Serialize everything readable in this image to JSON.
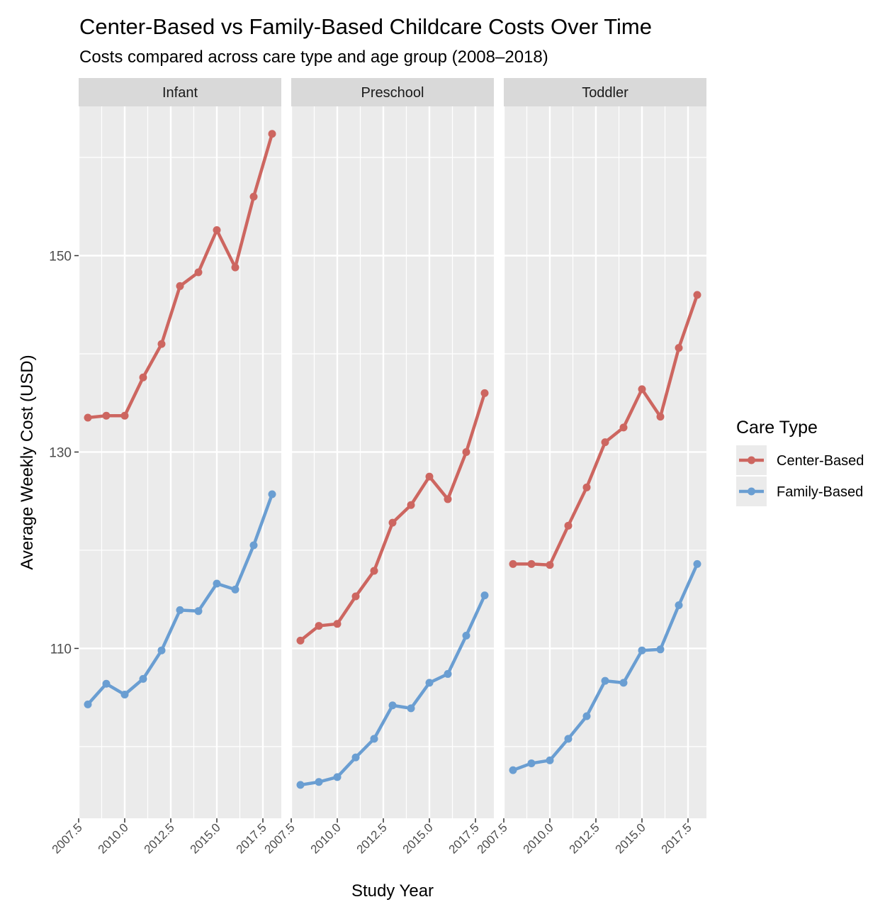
{
  "chart_data": {
    "type": "line",
    "title": "Center-Based vs Family-Based Childcare Costs Over Time",
    "subtitle": "Costs compared across care type and age group (2008–2018)",
    "xlabel": "Study Year",
    "ylabel": "Average Weekly Cost (USD)",
    "xlim": [
      2007.5,
      2018.5
    ],
    "ylim": [
      92.7,
      165.2
    ],
    "x_ticks": [
      2007.5,
      2010.0,
      2012.5,
      2015.0,
      2017.5
    ],
    "x_tick_labels": [
      "2007.5",
      "2010.0",
      "2012.5",
      "2015.0",
      "2017.5"
    ],
    "y_ticks": [
      110,
      130,
      150
    ],
    "y_tick_labels": [
      "110",
      "130",
      "150"
    ],
    "grid": true,
    "legend": {
      "title": "Care Type",
      "position": "right",
      "entries": [
        "Center-Based",
        "Family-Based"
      ]
    },
    "colors": {
      "Center-Based": "#CD6660",
      "Family-Based": "#6A9ED2",
      "panel_background": "#EBEBEB",
      "strip_background": "#D9D9D9",
      "grid": "#FFFFFF"
    },
    "x": [
      2008,
      2009,
      2010,
      2011,
      2012,
      2013,
      2014,
      2015,
      2016,
      2017,
      2018
    ],
    "facets": [
      {
        "label": "Infant",
        "series": [
          {
            "name": "Center-Based",
            "values": [
              133.5,
              133.7,
              133.7,
              137.6,
              141.0,
              146.9,
              148.3,
              152.6,
              148.8,
              156.0,
              162.4
            ]
          },
          {
            "name": "Family-Based",
            "values": [
              104.3,
              106.4,
              105.3,
              106.9,
              109.8,
              113.9,
              113.8,
              116.6,
              116.0,
              120.5,
              125.7
            ]
          }
        ]
      },
      {
        "label": "Preschool",
        "series": [
          {
            "name": "Center-Based",
            "values": [
              110.8,
              112.3,
              112.5,
              115.3,
              117.9,
              122.8,
              124.6,
              127.5,
              125.2,
              130.0,
              136.0
            ]
          },
          {
            "name": "Family-Based",
            "values": [
              96.1,
              96.4,
              96.9,
              98.9,
              100.8,
              104.2,
              103.9,
              106.5,
              107.4,
              111.3,
              115.4
            ]
          }
        ]
      },
      {
        "label": "Toddler",
        "series": [
          {
            "name": "Center-Based",
            "values": [
              118.6,
              118.6,
              118.5,
              122.5,
              126.4,
              131.0,
              132.5,
              136.4,
              133.6,
              140.6,
              146.0
            ]
          },
          {
            "name": "Family-Based",
            "values": [
              97.6,
              98.3,
              98.6,
              100.8,
              103.1,
              106.7,
              106.5,
              109.8,
              109.9,
              114.4,
              118.6
            ]
          }
        ]
      }
    ]
  }
}
